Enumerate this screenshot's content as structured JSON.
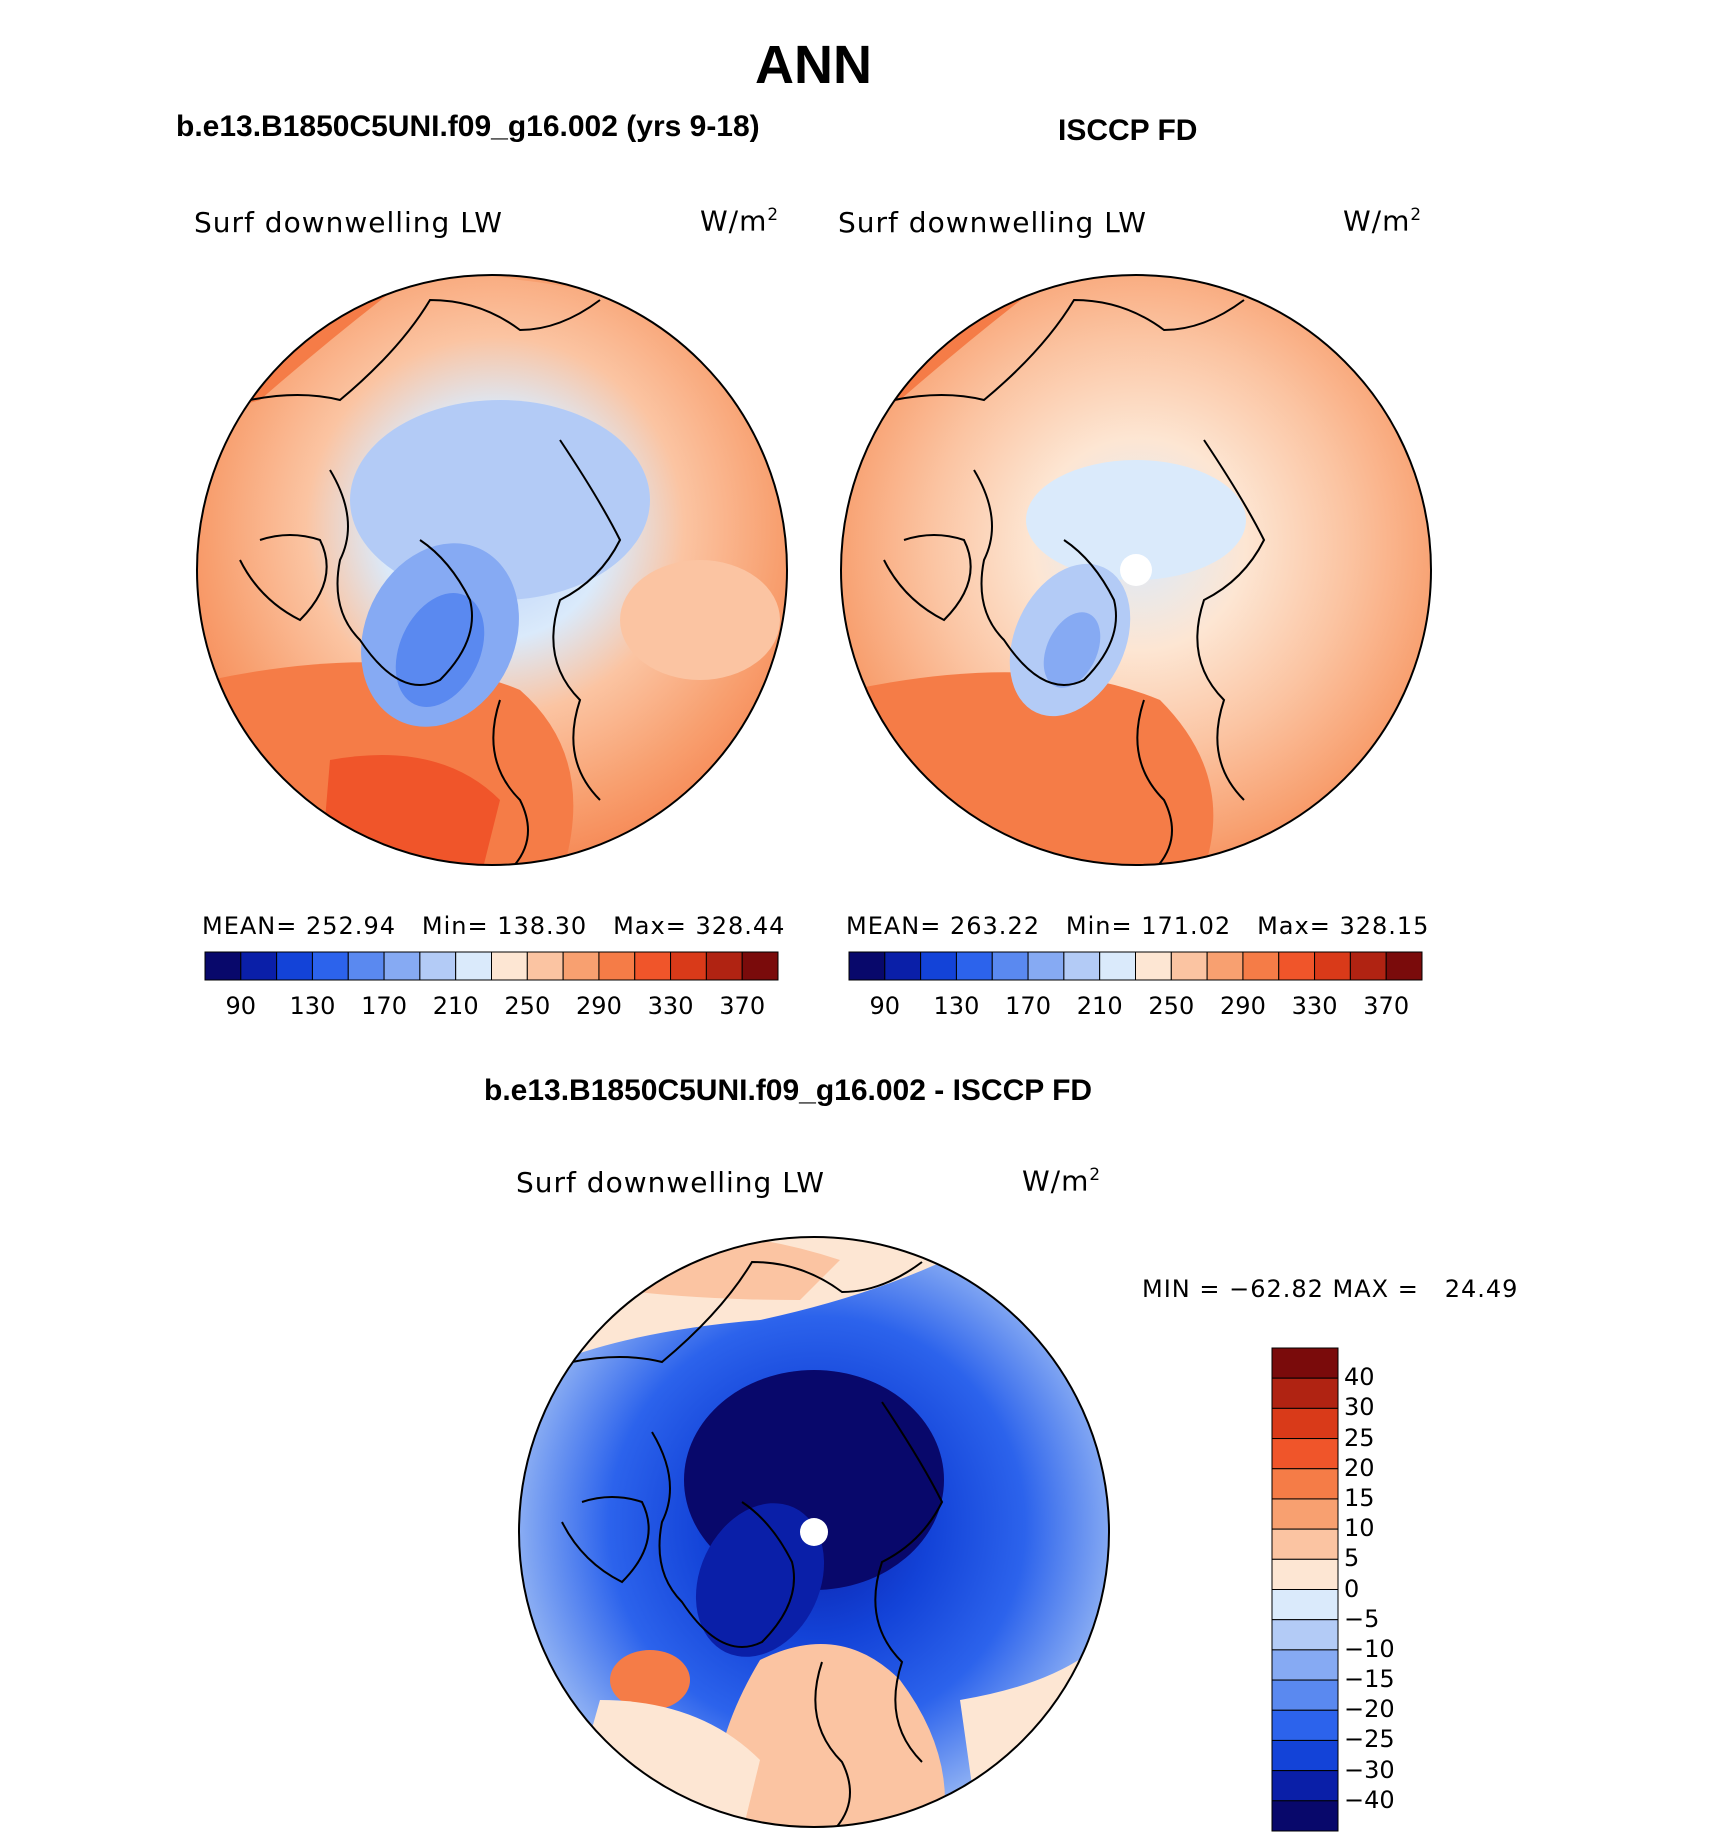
{
  "title": "ANN",
  "panels": [
    {
      "case": "b.e13.B1850C5UNI.f09_g16.002 (yrs 9-18)",
      "variable": "Surf downwelling LW",
      "units": "W/m",
      "units_exp": "2",
      "mean_label": "MEAN=",
      "mean": "252.94",
      "min_label": "Min=",
      "min": "138.30",
      "max_label": "Max=",
      "max": "328.44"
    },
    {
      "case": "ISCCP FD",
      "variable": "Surf downwelling LW",
      "units": "W/m",
      "units_exp": "2",
      "mean_label": "MEAN=",
      "mean": "263.22",
      "min_label": "Min=",
      "min": "171.02",
      "max_label": "Max=",
      "max": "328.15"
    }
  ],
  "diff": {
    "title": "b.e13.B1850C5UNI.f09_g16.002 - ISCCP FD",
    "variable": "Surf downwelling LW",
    "units": "W/m",
    "units_exp": "2",
    "minmax": "MIN = −62.82 MAX =   24.49"
  },
  "abs_colorbar": {
    "colors": [
      "#08086b",
      "#0a1fa8",
      "#1343d8",
      "#2c63ec",
      "#5a89f0",
      "#86aaf3",
      "#b3cbf6",
      "#daeafb",
      "#fde6d3",
      "#fbc4a2",
      "#f8a070",
      "#f57c47",
      "#f0552a",
      "#d93a19",
      "#b02312",
      "#7a0b0b"
    ],
    "tick_labels": [
      "90",
      "130",
      "170",
      "210",
      "250",
      "290",
      "330",
      "370"
    ]
  },
  "diff_colorbar": {
    "colors": [
      "#08086b",
      "#0a1fa8",
      "#1343d8",
      "#2c63ec",
      "#5a89f0",
      "#86aaf3",
      "#b3cbf6",
      "#daeafb",
      "#fde6d3",
      "#fbc4a2",
      "#f8a070",
      "#f57c47",
      "#f0552a",
      "#d93a19",
      "#b02312",
      "#7a0b0b"
    ],
    "tick_labels": [
      "−40",
      "−30",
      "−25",
      "−20",
      "−15",
      "−10",
      "−5",
      "0",
      "5",
      "10",
      "15",
      "20",
      "25",
      "30",
      "40"
    ]
  },
  "chart_data": [
    {
      "type": "heatmap",
      "title": "b.e13.B1850C5UNI.f09_g16.002 (yrs 9-18)",
      "variable": "Surf downwelling LW",
      "units": "W/m2",
      "projection": "north polar stereographic",
      "mean": 252.94,
      "min": 138.3,
      "max": 328.44,
      "levels": [
        90,
        110,
        130,
        150,
        170,
        190,
        210,
        230,
        250,
        270,
        290,
        310,
        330,
        350,
        370
      ]
    },
    {
      "type": "heatmap",
      "title": "ISCCP FD",
      "variable": "Surf downwelling LW",
      "units": "W/m2",
      "projection": "north polar stereographic",
      "mean": 263.22,
      "min": 171.02,
      "max": 328.15,
      "levels": [
        90,
        110,
        130,
        150,
        170,
        190,
        210,
        230,
        250,
        270,
        290,
        310,
        330,
        350,
        370
      ]
    },
    {
      "type": "heatmap",
      "title": "b.e13.B1850C5UNI.f09_g16.002 - ISCCP FD",
      "variable": "Surf downwelling LW",
      "units": "W/m2",
      "projection": "north polar stereographic",
      "min": -62.82,
      "max": 24.49,
      "levels": [
        -40,
        -30,
        -25,
        -20,
        -15,
        -10,
        -5,
        0,
        5,
        10,
        15,
        20,
        25,
        30,
        40
      ]
    }
  ]
}
